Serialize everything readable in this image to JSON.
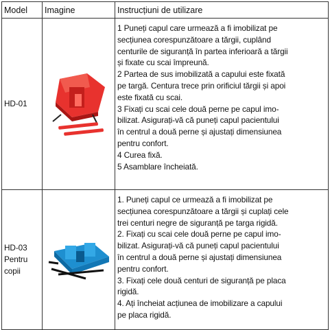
{
  "table": {
    "header": [
      "Model",
      "Imagine",
      "Instrucțiuni de utilizare"
    ],
    "rows": [
      {
        "model": [
          "HD-01"
        ],
        "instructions": [
          "1 Puneți capul care urmează a fi imobilizat pe",
          "secțiunea corespunzătoare a tărgii, cuplând",
          "centurile de siguranță în partea inferioară a tărgii",
          "și fixate cu scai împreună.",
          "2 Partea de sus imobilizată a capului este fixată",
          "pe targă. Centura trece prin orificiul tărgii și apoi",
          "este fixată cu scai.",
          "3 Fixați cu scai cele două perne pe capul imo-",
          "bilizat. Asigurați-vă că puneți capul pacientului",
          "în centrul a două perne și ajustați dimensiunea",
          "pentru confort.",
          "4 Curea fixă.",
          "5 Asamblare încheiată."
        ]
      },
      {
        "model": [
          "HD-03",
          "Pentru",
          "copii"
        ],
        "instructions": [
          "1. Puneți capul ce urmează a fi imobilizat pe",
          "secțiunea corespunzătoare a tărgii și cuplați cele",
          "trei centuri negre de siguranță pe targa rigidă.",
          "2. Fixați cu scai cele două perne pe capul imo-",
          "bilizat. Asigurați-vă că puneți capul pacientului",
          "în centrul a două perne și ajustați dimensiunea",
          "pentru confort.",
          "3. Fixați cele două centuri de siguranță pe placa",
          "rigidă.",
          "4. Ați încheiat acțiunea de imobilizare a capului",
          "pe placa rigidă."
        ]
      }
    ]
  }
}
